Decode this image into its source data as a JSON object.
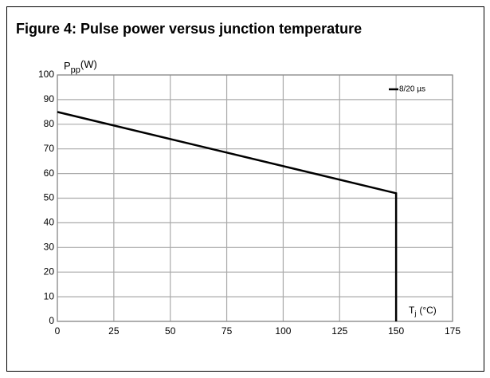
{
  "chart_data": {
    "type": "line",
    "title": "Figure 4: Pulse power versus junction temperature",
    "y_label": {
      "main": "P",
      "sub": "pp",
      "unit": "(W)"
    },
    "x_label": {
      "main": "T",
      "sub": "j",
      "unit": "(°C)"
    },
    "x": [
      0,
      150,
      150
    ],
    "series": [
      {
        "name": "8/20 µs",
        "color": "#000000",
        "values": [
          85,
          52,
          0
        ]
      }
    ],
    "xlim": [
      0,
      175
    ],
    "xticks": [
      0,
      25,
      50,
      75,
      100,
      125,
      150,
      175
    ],
    "ylim": [
      0,
      100
    ],
    "yticks": [
      0,
      10,
      20,
      30,
      40,
      50,
      60,
      70,
      80,
      90,
      100
    ],
    "grid": true,
    "legend": "upper right"
  }
}
